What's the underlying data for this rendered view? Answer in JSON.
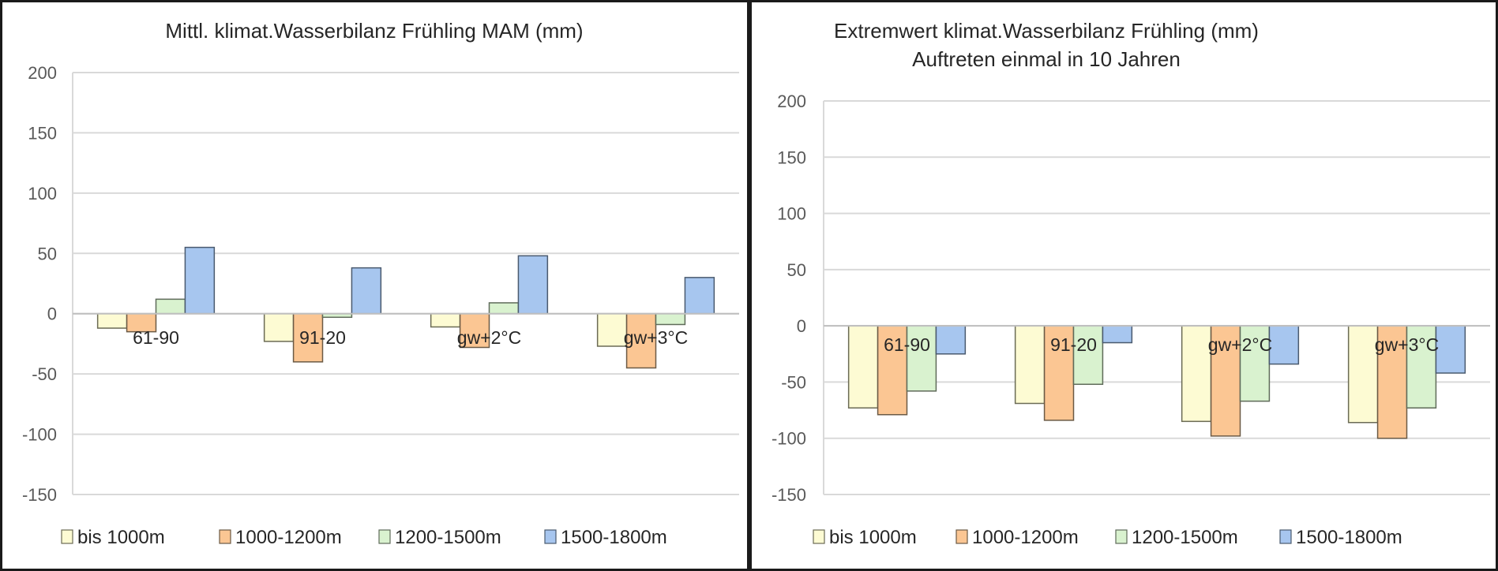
{
  "legend_colors": {
    "bis 1000m": {
      "fill": "#fdfbd3",
      "stroke": "#6b6b55"
    },
    "1000-1200m": {
      "fill": "#fbc693",
      "stroke": "#6b5a45"
    },
    "1200-1500m": {
      "fill": "#d9f2cf",
      "stroke": "#5f6b5a"
    },
    "1500-1800m": {
      "fill": "#a7c6ef",
      "stroke": "#4a5a6e"
    }
  },
  "chart_data": [
    {
      "type": "bar",
      "title": [
        "Mittl. klimat.Wasserbilanz Frühling MAM (mm)"
      ],
      "categories": [
        "61-90",
        "91-20",
        "gw+2°C",
        "gw+3°C"
      ],
      "series": [
        {
          "name": "bis 1000m",
          "values": [
            -12,
            -23,
            -11,
            -27
          ]
        },
        {
          "name": "1000-1200m",
          "values": [
            -15,
            -40,
            -28,
            -45
          ]
        },
        {
          "name": "1200-1500m",
          "values": [
            12,
            -3,
            9,
            -9
          ]
        },
        {
          "name": "1500-1800m",
          "values": [
            55,
            38,
            48,
            30
          ]
        }
      ],
      "ylim": [
        -150,
        200
      ],
      "yticks": [
        -150,
        -100,
        -50,
        0,
        50,
        100,
        150,
        200
      ],
      "xlabel": "",
      "ylabel": "",
      "grid": true,
      "legend": "bottom"
    },
    {
      "type": "bar",
      "title": [
        "Extremwert klimat.Wasserbilanz Frühling (mm)",
        "Auftreten einmal in 10 Jahren"
      ],
      "categories": [
        "61-90",
        "91-20",
        "gw+2°C",
        "gw+3°C"
      ],
      "series": [
        {
          "name": "bis 1000m",
          "values": [
            -73,
            -69,
            -85,
            -86
          ]
        },
        {
          "name": "1000-1200m",
          "values": [
            -79,
            -84,
            -98,
            -100
          ]
        },
        {
          "name": "1200-1500m",
          "values": [
            -58,
            -52,
            -67,
            -73
          ]
        },
        {
          "name": "1500-1800m",
          "values": [
            -25,
            -15,
            -34,
            -42
          ]
        }
      ],
      "ylim": [
        -150,
        200
      ],
      "yticks": [
        -150,
        -100,
        -50,
        0,
        50,
        100,
        150,
        200
      ],
      "xlabel": "",
      "ylabel": "",
      "grid": true,
      "legend": "bottom"
    }
  ]
}
